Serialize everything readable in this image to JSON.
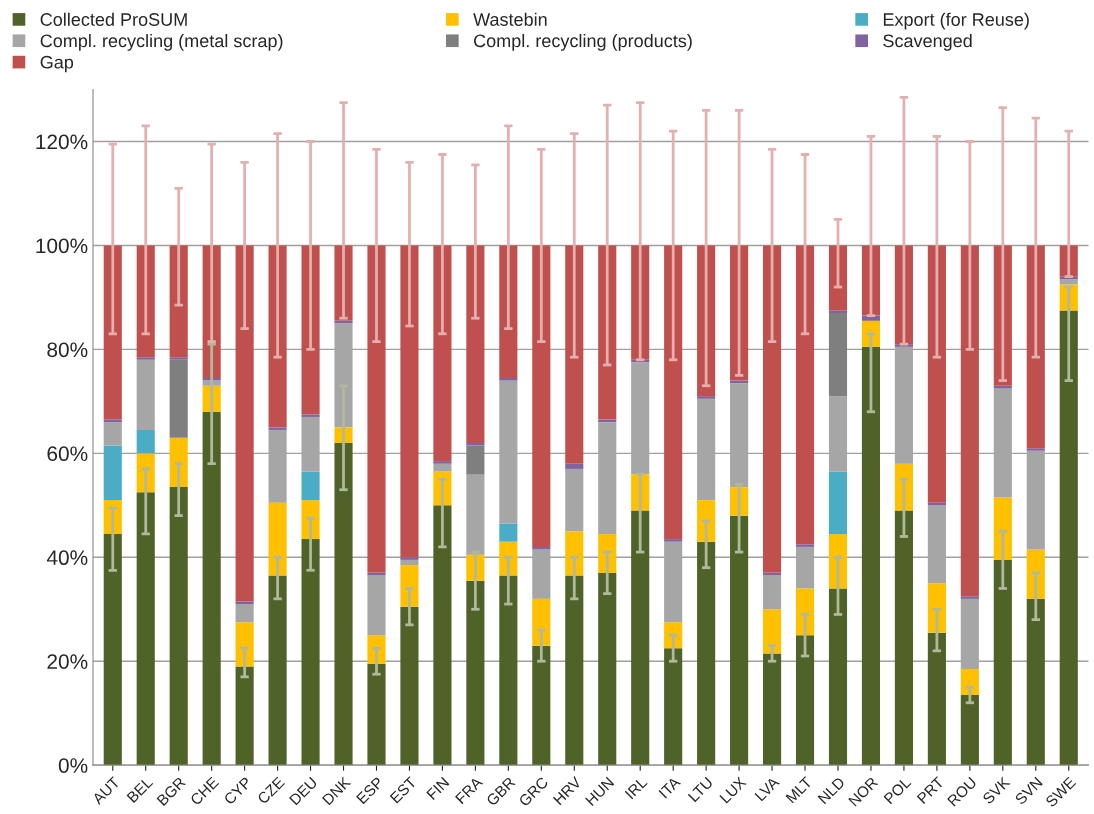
{
  "chart_data": {
    "type": "bar",
    "stacked": true,
    "categories": [
      "AUT",
      "BEL",
      "BGR",
      "CHE",
      "CYP",
      "CZE",
      "DEU",
      "DNK",
      "ESP",
      "EST",
      "FIN",
      "FRA",
      "GBR",
      "GRC",
      "HRV",
      "HUN",
      "IRL",
      "ITA",
      "LTU",
      "LUX",
      "LVA",
      "MLT",
      "NLD",
      "NOR",
      "POL",
      "PRT",
      "ROU",
      "SVK",
      "SVN",
      "SWE"
    ],
    "series": [
      {
        "name": "Collected ProSUM",
        "color": "#4f6228",
        "values": [
          44.5,
          52.5,
          53.5,
          68,
          19,
          36.5,
          43.5,
          62,
          19.5,
          30.5,
          50,
          35.5,
          36.5,
          23,
          36.5,
          37,
          49,
          22.5,
          43,
          48,
          21.5,
          25,
          34,
          80.5,
          49,
          25.5,
          13.5,
          39.5,
          32,
          87.5
        ],
        "errors": [
          [
            37.5,
            49.5
          ],
          [
            44.5,
            57
          ],
          [
            48,
            58
          ],
          [
            58,
            81
          ],
          [
            17,
            22.5
          ],
          [
            32,
            40
          ],
          [
            37.5,
            47.5
          ],
          [
            53,
            73
          ],
          [
            17.5,
            22.5
          ],
          [
            27,
            34
          ],
          [
            42,
            55
          ],
          [
            30,
            41
          ],
          [
            31,
            40
          ],
          [
            20,
            26
          ],
          [
            32,
            40
          ],
          [
            33,
            41
          ],
          [
            41,
            56
          ],
          [
            20,
            25
          ],
          [
            38,
            47
          ],
          [
            41,
            54
          ],
          [
            20,
            23
          ],
          [
            21,
            29
          ],
          [
            29,
            40
          ],
          [
            68,
            83
          ],
          [
            44,
            55
          ],
          [
            22,
            30
          ],
          [
            12,
            15
          ],
          [
            34,
            45
          ],
          [
            28,
            37
          ],
          [
            74,
            92
          ]
        ]
      },
      {
        "name": "Wastebin",
        "color": "#ffc000",
        "values": [
          6.5,
          7.5,
          9.5,
          5,
          8.5,
          14,
          7.5,
          3,
          5.5,
          8,
          6.5,
          5,
          6.5,
          9,
          8.5,
          7.5,
          7,
          5,
          8,
          5.5,
          8.5,
          9,
          10.5,
          5,
          9,
          9.5,
          5,
          12,
          9.5,
          5
        ]
      },
      {
        "name": "Export (for Reuse)",
        "color": "#4bacc6",
        "values": [
          10.5,
          4.5,
          0,
          0,
          0,
          0,
          5.5,
          0,
          0,
          0,
          0,
          0,
          3.5,
          0,
          0,
          0,
          0,
          0,
          0,
          0,
          0,
          0,
          12,
          0,
          0,
          0,
          0,
          0,
          0,
          0
        ]
      },
      {
        "name": "Compl. recycling (metal scrap)",
        "color": "#a6a6a6",
        "values": [
          4.5,
          13.5,
          0,
          1,
          3.5,
          14,
          10.5,
          20,
          11.5,
          1,
          1.5,
          15.5,
          27.5,
          9.5,
          12,
          21.5,
          21.5,
          15.5,
          19.5,
          20,
          6.5,
          8,
          14.5,
          0,
          22.5,
          15,
          13.5,
          21,
          19,
          1
        ]
      },
      {
        "name": "Compl. recycling (products)",
        "color": "#7f7f7f",
        "values": [
          0,
          0,
          15,
          0,
          0,
          0,
          0,
          0,
          0,
          0,
          0,
          5.5,
          0,
          0,
          0,
          0,
          0,
          0,
          0,
          0,
          0,
          0,
          16,
          0,
          0,
          0,
          0,
          0,
          0,
          0
        ]
      },
      {
        "name": "Scavenged",
        "color": "#8064a2",
        "values": [
          0.5,
          0.5,
          0.5,
          0.5,
          0.5,
          0.5,
          0.5,
          0.5,
          0.5,
          0.5,
          0.5,
          0.5,
          0.5,
          0.5,
          1,
          0.5,
          0.5,
          0.5,
          0.5,
          0.5,
          0.5,
          0.5,
          0.5,
          1,
          0.5,
          0.5,
          0.5,
          0.5,
          0.5,
          0.5
        ]
      },
      {
        "name": "Gap",
        "color": "#c0504d",
        "values": [
          33.5,
          21.5,
          21.5,
          25.5,
          68.5,
          35,
          32.5,
          14.5,
          63,
          60,
          41.5,
          38,
          25.5,
          58,
          42,
          33.5,
          22,
          56.5,
          29,
          26,
          63,
          57.5,
          12.5,
          13.5,
          19,
          49.5,
          67.5,
          27,
          39,
          6
        ],
        "errors": [
          [
            83,
            119.5
          ],
          [
            83,
            123
          ],
          [
            88.5,
            111
          ],
          [
            81.5,
            119.5
          ],
          [
            84,
            116
          ],
          [
            78.5,
            121.5
          ],
          [
            80,
            120
          ],
          [
            86,
            127.5
          ],
          [
            81.5,
            118.5
          ],
          [
            84.5,
            116
          ],
          [
            83,
            117.5
          ],
          [
            86,
            115.5
          ],
          [
            84,
            123
          ],
          [
            81.5,
            118.5
          ],
          [
            78.5,
            121.5
          ],
          [
            77,
            127
          ],
          [
            78,
            127.5
          ],
          [
            78,
            122
          ],
          [
            73,
            126
          ],
          [
            75,
            126
          ],
          [
            81.5,
            118.5
          ],
          [
            83,
            117.5
          ],
          [
            92,
            105
          ],
          [
            86.5,
            121
          ],
          [
            81,
            128.5
          ],
          [
            78.5,
            121
          ],
          [
            80,
            120
          ],
          [
            74,
            126.5
          ],
          [
            78.5,
            124.5
          ],
          [
            94,
            122
          ]
        ]
      }
    ],
    "ylim": [
      0,
      130
    ],
    "yticks": [
      {
        "value": 0,
        "label": "0%"
      },
      {
        "value": 20,
        "label": "20%"
      },
      {
        "value": 40,
        "label": "40%"
      },
      {
        "value": 60,
        "label": "60%"
      },
      {
        "value": 80,
        "label": "80%"
      },
      {
        "value": 100,
        "label": "100%"
      },
      {
        "value": 120,
        "label": "120%"
      }
    ],
    "grid": "y",
    "legend": "top"
  }
}
